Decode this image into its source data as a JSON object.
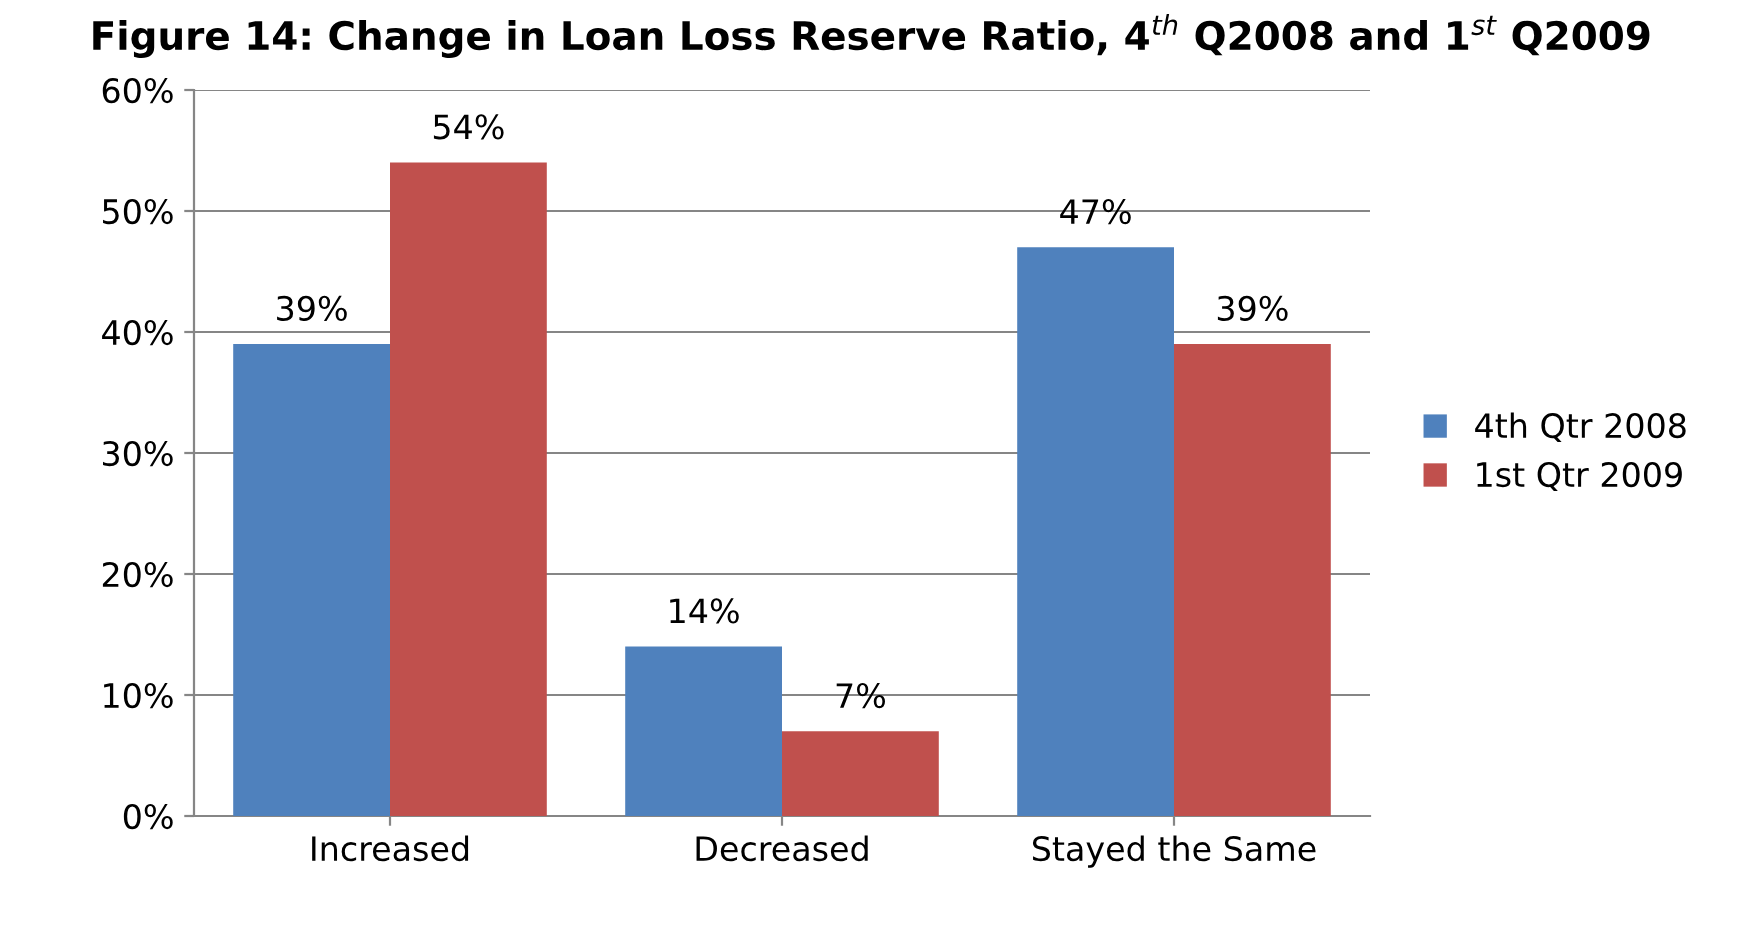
{
  "chart_data": {
    "type": "bar",
    "title": "Figure 14: Change in Loan Loss Reserve Ratio, 4$^{th}$ Q2008 and 1$^{st}$ Q2009",
    "categories": [
      "Increased",
      "Decreased",
      "Stayed the Same"
    ],
    "series": [
      {
        "name": "4th Qtr 2008",
        "color": "#4f81bd",
        "values": [
          39,
          14,
          47
        ],
        "value_labels": [
          "39%",
          "14%",
          "47%"
        ]
      },
      {
        "name": "1st Qtr 2009",
        "color": "#c0504d",
        "values": [
          54,
          7,
          39
        ],
        "value_labels": [
          "54%",
          "7%",
          "39%"
        ]
      }
    ],
    "ylim": [
      0,
      60
    ],
    "yticks": [
      {
        "value": 0,
        "label": "0%"
      },
      {
        "value": 10,
        "label": "10%"
      },
      {
        "value": 20,
        "label": "20%"
      },
      {
        "value": 30,
        "label": "30%"
      },
      {
        "value": 40,
        "label": "40%"
      },
      {
        "value": 50,
        "label": "50%"
      },
      {
        "value": 60,
        "label": "60%"
      }
    ],
    "grid": "y",
    "legend": "right"
  }
}
